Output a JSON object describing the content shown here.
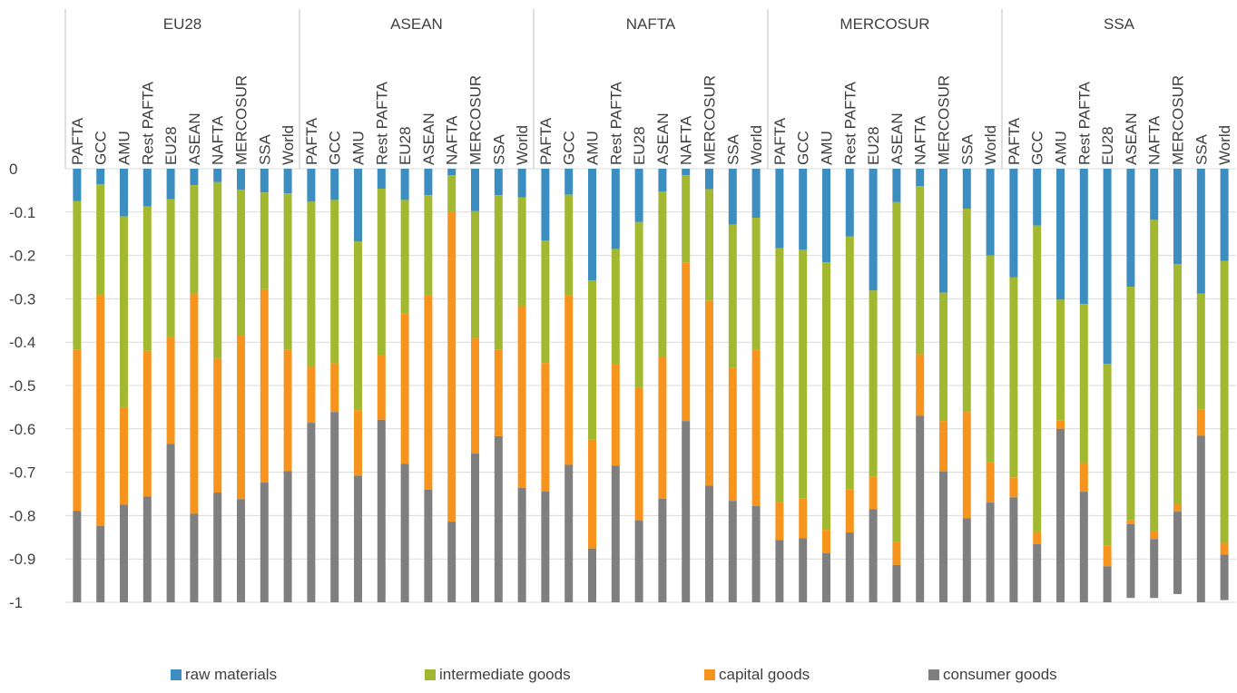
{
  "chart_data": {
    "type": "bar",
    "stacked": true,
    "groups": [
      "EU28",
      "ASEAN",
      "NAFTA",
      "MERCOSUR",
      "SSA"
    ],
    "categories": [
      "PAFTA",
      "GCC",
      "AMU",
      "Rest PAFTA",
      "EU28",
      "ASEAN",
      "NAFTA",
      "MERCOSUR",
      "SSA",
      "World"
    ],
    "y_ticks": [
      "0",
      "-0.1",
      "-0.2",
      "-0.3",
      "-0.4",
      "-0.5",
      "-0.6",
      "-0.7",
      "-0.8",
      "-0.9",
      "-1"
    ],
    "ylim": [
      -1,
      0
    ],
    "grid": true,
    "legend_position": "bottom",
    "series": [
      {
        "name": "raw materials",
        "color": "#3C8DC0",
        "values": [
          [
            -0.075,
            -0.036,
            -0.11,
            -0.087,
            -0.07,
            -0.038,
            -0.031,
            -0.048,
            -0.055,
            -0.057
          ],
          [
            -0.076,
            -0.072,
            -0.168,
            -0.046,
            -0.072,
            -0.061,
            -0.015,
            -0.098,
            -0.061,
            -0.066
          ],
          [
            -0.166,
            -0.06,
            -0.258,
            -0.185,
            -0.123,
            -0.053,
            -0.015,
            -0.047,
            -0.129,
            -0.113
          ],
          [
            -0.183,
            -0.187,
            -0.216,
            -0.156,
            -0.281,
            -0.077,
            -0.04,
            -0.286,
            -0.092,
            -0.2
          ],
          [
            -0.25,
            -0.131,
            -0.302,
            -0.312,
            -0.45,
            -0.272,
            -0.118,
            -0.22,
            -0.288,
            -0.213
          ]
        ]
      },
      {
        "name": "intermediate goods",
        "color": "#A2B830",
        "values": [
          [
            -0.342,
            -0.256,
            -0.44,
            -0.333,
            -0.318,
            -0.251,
            -0.406,
            -0.337,
            -0.223,
            -0.361
          ],
          [
            -0.381,
            -0.377,
            -0.389,
            -0.384,
            -0.262,
            -0.23,
            -0.085,
            -0.292,
            -0.356,
            -0.25
          ],
          [
            -0.282,
            -0.231,
            -0.367,
            -0.266,
            -0.381,
            -0.382,
            -0.202,
            -0.258,
            -0.33,
            -0.305
          ],
          [
            -0.587,
            -0.574,
            -0.617,
            -0.583,
            -0.43,
            -0.783,
            -0.388,
            -0.296,
            -0.469,
            -0.477
          ],
          [
            -0.462,
            -0.707,
            -0.279,
            -0.367,
            -0.419,
            -0.538,
            -0.718,
            -0.554,
            -0.268,
            -0.65
          ]
        ]
      },
      {
        "name": "capital goods",
        "color": "#F7941D",
        "values": [
          [
            -0.372,
            -0.532,
            -0.225,
            -0.336,
            -0.247,
            -0.507,
            -0.31,
            -0.377,
            -0.446,
            -0.279
          ],
          [
            -0.129,
            -0.112,
            -0.151,
            -0.149,
            -0.347,
            -0.449,
            -0.714,
            -0.267,
            -0.2,
            -0.42
          ],
          [
            -0.296,
            -0.392,
            -0.251,
            -0.234,
            -0.307,
            -0.326,
            -0.365,
            -0.426,
            -0.307,
            -0.36
          ],
          [
            -0.086,
            -0.091,
            -0.054,
            -0.1,
            -0.074,
            -0.054,
            -0.142,
            -0.116,
            -0.245,
            -0.093
          ],
          [
            -0.046,
            -0.028,
            -0.019,
            -0.066,
            -0.048,
            -0.01,
            -0.018,
            -0.017,
            -0.06,
            -0.027
          ]
        ]
      },
      {
        "name": "consumer goods",
        "color": "#7F7F7F",
        "values": [
          [
            -0.211,
            -0.176,
            -0.225,
            -0.244,
            -0.365,
            -0.204,
            -0.253,
            -0.238,
            -0.276,
            -0.303
          ],
          [
            -0.414,
            -0.439,
            -0.292,
            -0.421,
            -0.319,
            -0.26,
            -0.186,
            -0.343,
            -0.383,
            -0.264
          ],
          [
            -0.256,
            -0.317,
            -0.124,
            -0.315,
            -0.189,
            -0.239,
            -0.418,
            -0.269,
            -0.234,
            -0.222
          ],
          [
            -0.144,
            -0.148,
            -0.113,
            -0.161,
            -0.215,
            -0.086,
            -0.43,
            -0.302,
            -0.194,
            -0.23
          ],
          [
            -0.242,
            -0.134,
            -0.4,
            -0.255,
            -0.083,
            -0.17,
            -0.136,
            -0.19,
            -0.384,
            -0.105
          ]
        ]
      }
    ]
  }
}
